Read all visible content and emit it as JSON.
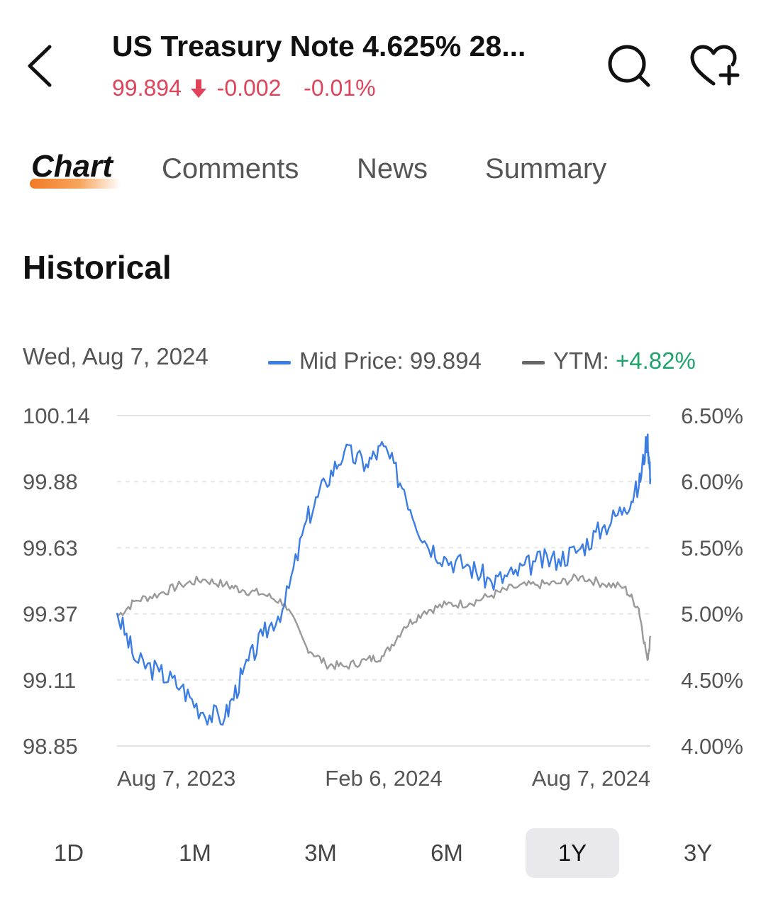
{
  "header": {
    "title": "US Treasury Note 4.625% 28...",
    "price": "99.894",
    "change": "-0.002",
    "change_pct": "-0.01%",
    "change_color": "#e0435a",
    "icons": {
      "back": "back-arrow-icon",
      "search": "search-icon",
      "watchlist": "heart-plus-icon"
    }
  },
  "tabs": [
    {
      "label": "Chart",
      "active": true
    },
    {
      "label": "Comments",
      "active": false
    },
    {
      "label": "News",
      "active": false
    },
    {
      "label": "Summary",
      "active": false
    }
  ],
  "section_title": "Historical",
  "info": {
    "date": "Wed, Aug 7, 2024",
    "mid_label": "Mid Price: 99.894",
    "ytm_label": "YTM: ",
    "ytm_value": "+4.82%",
    "mid_color": "#3b7de3",
    "ytm_color": "#666666",
    "positive_color": "#1fa36b"
  },
  "ranges": [
    {
      "label": "1D",
      "selected": false
    },
    {
      "label": "1M",
      "selected": false
    },
    {
      "label": "3M",
      "selected": false
    },
    {
      "label": "6M",
      "selected": false
    },
    {
      "label": "1Y",
      "selected": true
    },
    {
      "label": "3Y",
      "selected": false
    }
  ],
  "chart_data": {
    "type": "line",
    "y_left_ticks": [
      "100.14",
      "99.88",
      "99.63",
      "99.37",
      "99.11",
      "98.85"
    ],
    "y_right_ticks": [
      "6.50%",
      "6.00%",
      "5.50%",
      "5.00%",
      "4.50%",
      "4.00%"
    ],
    "x_ticks": [
      "Aug 7, 2023",
      "Feb 6, 2024",
      "Aug 7, 2024"
    ],
    "y_left_range": [
      98.85,
      100.14
    ],
    "y_right_range": [
      4.0,
      6.5
    ],
    "grid": true,
    "series": [
      {
        "name": "Mid Price",
        "axis": "left",
        "color": "#3b7de3",
        "x": [
          "2023-08-07",
          "2023-08-20",
          "2023-09-05",
          "2023-09-20",
          "2023-10-05",
          "2023-10-20",
          "2023-11-01",
          "2023-11-15",
          "2023-11-30",
          "2023-12-15",
          "2023-12-28",
          "2024-01-10",
          "2024-01-25",
          "2024-02-06",
          "2024-02-20",
          "2024-03-05",
          "2024-03-20",
          "2024-04-05",
          "2024-04-20",
          "2024-05-05",
          "2024-05-20",
          "2024-06-05",
          "2024-06-20",
          "2024-07-05",
          "2024-07-20",
          "2024-07-30",
          "2024-08-05",
          "2024-08-07"
        ],
        "values": [
          99.37,
          99.18,
          99.14,
          99.08,
          98.98,
          98.96,
          99.13,
          99.28,
          99.4,
          99.73,
          99.88,
          100.0,
          99.95,
          100.02,
          99.85,
          99.65,
          99.58,
          99.55,
          99.49,
          99.52,
          99.57,
          99.58,
          99.62,
          99.7,
          99.78,
          99.86,
          100.06,
          99.894
        ]
      },
      {
        "name": "YTM",
        "axis": "right",
        "color": "#999999",
        "x": [
          "2023-08-07",
          "2023-08-20",
          "2023-09-05",
          "2023-09-20",
          "2023-10-05",
          "2023-10-20",
          "2023-11-01",
          "2023-11-15",
          "2023-11-30",
          "2023-12-15",
          "2023-12-28",
          "2024-01-10",
          "2024-01-25",
          "2024-02-06",
          "2024-02-20",
          "2024-03-05",
          "2024-03-20",
          "2024-04-05",
          "2024-04-20",
          "2024-05-05",
          "2024-05-20",
          "2024-06-05",
          "2024-06-20",
          "2024-07-05",
          "2024-07-20",
          "2024-07-30",
          "2024-08-05",
          "2024-08-07"
        ],
        "values": [
          4.98,
          5.1,
          5.15,
          5.22,
          5.26,
          5.22,
          5.18,
          5.15,
          5.08,
          4.75,
          4.62,
          4.6,
          4.65,
          4.68,
          4.9,
          5.02,
          5.07,
          5.08,
          5.14,
          5.2,
          5.22,
          5.23,
          5.28,
          5.23,
          5.2,
          5.04,
          4.65,
          4.82
        ]
      }
    ]
  }
}
